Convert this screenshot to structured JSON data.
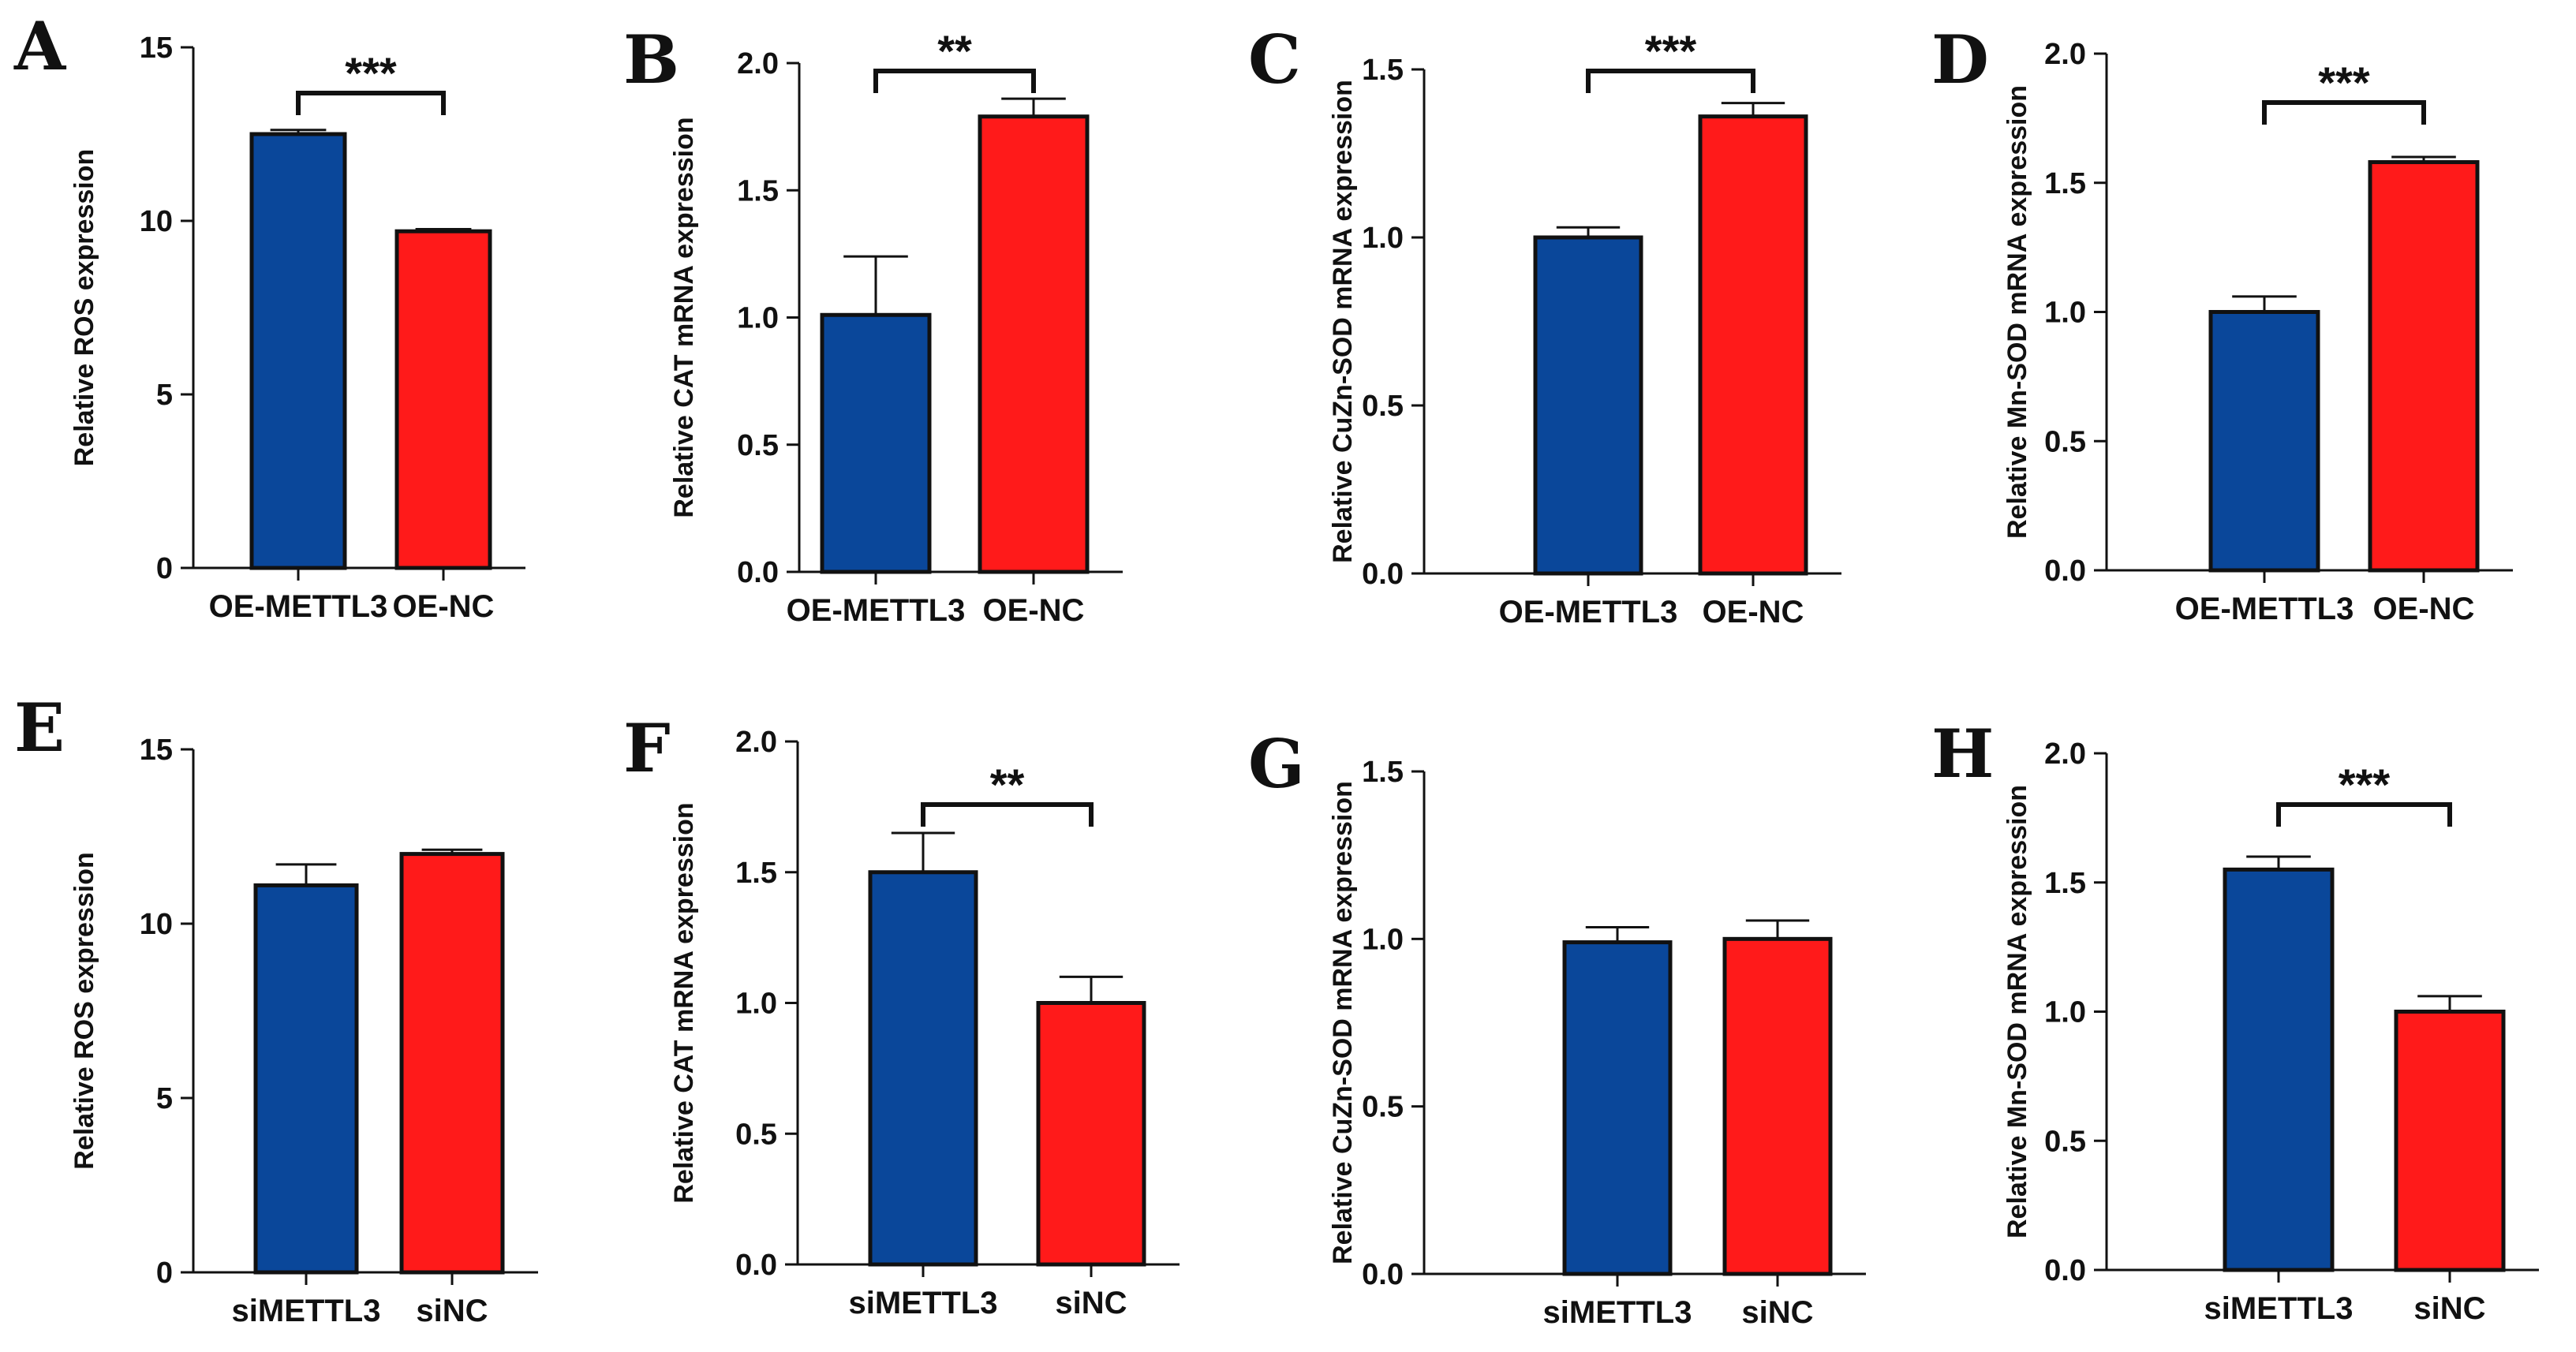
{
  "figure": {
    "bar_colors": [
      "#0A479A",
      "#FF1A1A"
    ],
    "edge_color": "#111111"
  },
  "chart_data": [
    {
      "panel": "A",
      "type": "bar",
      "ylabel": "Relative ROS expression",
      "ylim": [
        0,
        15
      ],
      "yticks": [
        "0",
        "5",
        "10",
        "15"
      ],
      "categories": [
        "OE-METTL3",
        "OE-NC"
      ],
      "values": [
        12.5,
        9.7
      ],
      "errors": [
        0.12,
        0.06
      ],
      "significance": "***"
    },
    {
      "panel": "B",
      "type": "bar",
      "ylabel": "Relative CAT mRNA expression",
      "ylim": [
        0,
        2.0
      ],
      "yticks": [
        "0.0",
        "0.5",
        "1.0",
        "1.5",
        "2.0"
      ],
      "categories": [
        "OE-METTL3",
        "OE-NC"
      ],
      "values": [
        1.01,
        1.79
      ],
      "errors": [
        0.23,
        0.07
      ],
      "significance": "**"
    },
    {
      "panel": "C",
      "type": "bar",
      "ylabel": "Relative CuZn-SOD mRNA expression",
      "ylim": [
        0,
        1.5
      ],
      "yticks": [
        "0.0",
        "0.5",
        "1.0",
        "1.5"
      ],
      "categories": [
        "OE-METTL3",
        "OE-NC"
      ],
      "values": [
        1.0,
        1.36
      ],
      "errors": [
        0.03,
        0.04
      ],
      "significance": "***"
    },
    {
      "panel": "D",
      "type": "bar",
      "ylabel": "Relative Mn-SOD mRNA expression",
      "ylim": [
        0,
        2.0
      ],
      "yticks": [
        "0.0",
        "0.5",
        "1.0",
        "1.5",
        "2.0"
      ],
      "categories": [
        "OE-METTL3",
        "OE-NC"
      ],
      "values": [
        1.0,
        1.58
      ],
      "errors": [
        0.06,
        0.02
      ],
      "significance": "***"
    },
    {
      "panel": "E",
      "type": "bar",
      "ylabel": "Relative ROS expression",
      "ylim": [
        0,
        15
      ],
      "yticks": [
        "0",
        "5",
        "10",
        "15"
      ],
      "categories": [
        "siMETTL3",
        "siNC"
      ],
      "values": [
        11.1,
        12.0
      ],
      "errors": [
        0.6,
        0.12
      ],
      "significance": ""
    },
    {
      "panel": "F",
      "type": "bar",
      "ylabel": "Relative CAT mRNA expression",
      "ylim": [
        0,
        2.0
      ],
      "yticks": [
        "0.0",
        "0.5",
        "1.0",
        "1.5",
        "2.0"
      ],
      "categories": [
        "siMETTL3",
        "siNC"
      ],
      "values": [
        1.5,
        1.0
      ],
      "errors": [
        0.15,
        0.1
      ],
      "significance": "**"
    },
    {
      "panel": "G",
      "type": "bar",
      "ylabel": "Relative CuZn-SOD mRNA expression",
      "ylim": [
        0,
        1.5
      ],
      "yticks": [
        "0.0",
        "0.5",
        "1.0",
        "1.5"
      ],
      "categories": [
        "siMETTL3",
        "siNC"
      ],
      "values": [
        0.99,
        1.0
      ],
      "errors": [
        0.045,
        0.055
      ],
      "significance": ""
    },
    {
      "panel": "H",
      "type": "bar",
      "ylabel": "Relative Mn-SOD mRNA expression",
      "ylim": [
        0,
        2.0
      ],
      "yticks": [
        "0.0",
        "0.5",
        "1.0",
        "1.5",
        "2.0"
      ],
      "categories": [
        "siMETTL3",
        "siNC"
      ],
      "values": [
        1.55,
        1.0
      ],
      "errors": [
        0.05,
        0.06
      ],
      "significance": "***"
    }
  ]
}
